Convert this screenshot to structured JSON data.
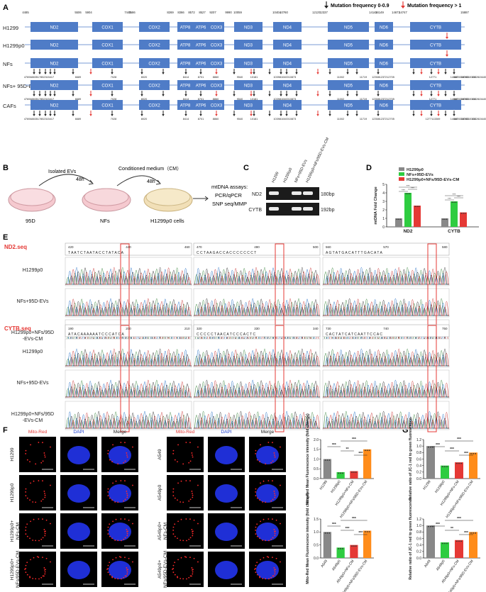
{
  "panel_labels": {
    "A": "A",
    "B": "B",
    "C": "C",
    "D": "D",
    "E": "E",
    "F": "F",
    "G": "G"
  },
  "legend": {
    "black_arrow": "Mutation frequency 0-0.9",
    "red_arrow": "Mutation frequency > 1",
    "colors": {
      "black": "#222222",
      "red": "#e53935"
    }
  },
  "panel_a": {
    "box_color": "#4f7cc7",
    "positions": [
      "4485",
      "5506",
      "5904",
      "7445",
      "7586",
      "8269",
      "8366",
      "8572",
      "8527",
      "9207",
      "9990",
      "10059",
      "10404",
      "10760",
      "12137",
      "12337",
      "14148",
      "14149",
      "14673",
      "14747",
      "15887"
    ],
    "genes": [
      "ND2",
      "COX1",
      "COX2",
      "ATP8",
      "ATP6",
      "COX3",
      "ND3",
      "ND4",
      "ND5",
      "ND6",
      "CYTB"
    ],
    "rows": [
      {
        "label": "H1299",
        "marks": [
          "15479"
        ]
      },
      {
        "label": "H1299ρ0",
        "marks": [
          "15479"
        ]
      },
      {
        "label": "NFs",
        "marks": [
          "4769|4883|5178|5231|5417",
          "6689",
          "7028",
          "8020",
          "8414",
          "8701",
          "8860",
          "9540",
          "10181",
          "10398|10400",
          "10873",
          "11002",
          "11719",
          "12358|12372|12705",
          "12771",
          "14668",
          "14783|14783",
          "15043|15301",
          "15326",
          "15440"
        ]
      },
      {
        "label": "NFs+ 95D-EVs",
        "marks": [
          "4769|4883|5178|5231|5417",
          "6689",
          "7028",
          "8020",
          "8414",
          "8701",
          "8860",
          "9540",
          "10181",
          "10398|10400",
          "10873",
          "11002",
          "11719",
          "12358|12372|12705",
          "12771",
          "14668",
          "14783|14783",
          "15043|15301",
          "15326",
          "15440"
        ]
      },
      {
        "label": "CAFs",
        "marks": [
          "4769|4883|5178|5231|5417",
          "6689",
          "7028",
          "8020",
          "8414",
          "8701",
          "8860",
          "9540",
          "10181",
          "10398|10400",
          "10873",
          "11002",
          "11719",
          "12358|12372|12705",
          "12771|13369",
          "14668",
          "14783|14783",
          "15043|15301",
          "15326",
          "15440"
        ]
      }
    ]
  },
  "panel_b": {
    "isolated_evs": "Isolated EVs",
    "conditioned_medium": "Conditioned medium（CM）",
    "time1": "48h",
    "time2": "48h",
    "dish1": "95D",
    "dish2": "NFs",
    "dish3": "H1299ρ0 cells",
    "assays": [
      "mtDNA assays:",
      "PCR/qPCR",
      "SNP seq/MMP"
    ]
  },
  "panel_c": {
    "lanes": [
      "H1299",
      "H1299ρ0",
      "NFs+95D-EVs",
      "H1299ρ0+NFs/95D-EVs-CM"
    ],
    "rows": [
      {
        "label": "ND2",
        "size": "180bp"
      },
      {
        "label": "CYTB",
        "size": "192bp"
      }
    ]
  },
  "panel_d": {
    "chart_data": {
      "type": "bar",
      "ylabel": "mtDNA Fold Change",
      "yticks": [
        "0",
        "1",
        "2",
        "3",
        "4",
        "5"
      ],
      "ylim": [
        0,
        5
      ],
      "categories": [
        "ND2",
        "CYTB"
      ],
      "series": [
        {
          "name": "H1299ρ0",
          "color": "#888888",
          "values": [
            1.0,
            1.0
          ]
        },
        {
          "name": "NFs+95D-EVs",
          "color": "#2ecc40",
          "values": [
            4.0,
            3.0
          ]
        },
        {
          "name": "H1299ρ0+NFs/95D-EVs-CM",
          "color": "#e53935",
          "values": [
            2.5,
            1.7
          ]
        }
      ],
      "significance": "***"
    }
  },
  "panel_e": {
    "nd2_title": "ND2.seq",
    "cytb_title": "CYTB.seq",
    "sample_labels": [
      "H1299ρ0",
      "NFs+95D-EVs",
      "H1299ρ0+NFs/95D-EVs-CM"
    ],
    "nd2_seq": [
      "T A A T C T A A T A C C T A T A C A",
      "C C T A A G A C C A C C C C C C C T",
      "A G T A T G A C A T T T G A C A T A"
    ],
    "cytb_seq": [
      "A T A C A A A A A A T C C C A T C A",
      "C C C C C T A A C A T C C C A C T C",
      "C A C T A T C A T C A A T T C C A C"
    ],
    "ruler_nd2": [
      "420",
      "440",
      "460",
      "470",
      "490",
      "500",
      "560",
      "570",
      "580"
    ],
    "ruler_cytb": [
      "190",
      "200",
      "210",
      "320",
      "330",
      "340",
      "730",
      "740",
      "750"
    ]
  },
  "panel_f": {
    "headers": [
      "Mito-Red",
      "DAPI",
      "Merge"
    ],
    "left_rows": [
      "H1299",
      "H1299ρ0",
      "H1299ρ0+NFs-CM",
      "H1299ρ0+NFs/95D-EVs-CM"
    ],
    "right_rows": [
      "A549",
      "A549ρ0",
      "A549ρ0+NFs-CM",
      "A549ρ0+NFs/95D-EVs-CM"
    ]
  },
  "panel_f_charts": {
    "chart_data": [
      {
        "type": "bar",
        "ylabel": "Mito-Red Mean Fluorescence intensity (fold change)",
        "yticks": [
          "0.0",
          "0.5",
          "1.0",
          "1.5",
          "2.0"
        ],
        "ylim": [
          0,
          2
        ],
        "categories": [
          "H1299",
          "H1299ρ0",
          "H1299ρ0+NFs-CM",
          "H1299ρ0+NFs/95D-EVs-CM"
        ],
        "values": [
          1.0,
          0.33,
          0.38,
          1.5
        ],
        "colors": [
          "#888888",
          "#2ecc40",
          "#e53935",
          "#ff8c1a"
        ],
        "sig": [
          "***",
          "**",
          "***",
          "***"
        ]
      },
      {
        "type": "bar",
        "ylabel": "Mito-Red Mean Fluorescence intensity (fold change)",
        "yticks": [
          "0.0",
          "0.5",
          "1.0",
          "1.5"
        ],
        "ylim": [
          0,
          1.5
        ],
        "categories": [
          "A549",
          "A549ρ0",
          "A549ρ0+NFs-CM",
          "A549ρ0+NFs/95D-EVs-CM"
        ],
        "values": [
          1.0,
          0.4,
          0.5,
          1.05
        ],
        "colors": [
          "#888888",
          "#2ecc40",
          "#e53935",
          "#ff8c1a"
        ],
        "sig": [
          "***",
          "***",
          "***",
          "***"
        ]
      }
    ]
  },
  "panel_g_charts": {
    "chart_data": [
      {
        "type": "bar",
        "ylabel": "Relative ratio of JC-1 red to green fluorescence",
        "yticks": [
          "0.0",
          "0.2",
          "0.4",
          "0.6",
          "0.8",
          "1.0",
          "1.2"
        ],
        "ylim": [
          0,
          1.2
        ],
        "categories": [
          "H1299",
          "H1299ρ0",
          "H1299ρ0+NFs-CM",
          "H1299ρ0+NFs/95D-EVs-CM"
        ],
        "values": [
          1.0,
          0.4,
          0.5,
          0.8
        ],
        "colors": [
          "#888888",
          "#2ecc40",
          "#e53935",
          "#ff8c1a"
        ],
        "sig": [
          "***",
          "***",
          "***",
          "***"
        ]
      },
      {
        "type": "bar",
        "ylabel": "Relative ratio of JC-1 red to green fluorescence",
        "yticks": [
          "0.0",
          "0.2",
          "0.4",
          "0.6",
          "0.8",
          "1.0",
          "1.2"
        ],
        "ylim": [
          0,
          1.2
        ],
        "categories": [
          "A549",
          "A549ρ0",
          "A549ρ0+NFs-CM",
          "A549ρ0+NFs/95D-EVs-CM"
        ],
        "values": [
          1.0,
          0.48,
          0.55,
          0.8
        ],
        "colors": [
          "#888888",
          "#2ecc40",
          "#e53935",
          "#ff8c1a"
        ],
        "sig": [
          "***",
          "**",
          "***",
          "***"
        ]
      }
    ]
  }
}
